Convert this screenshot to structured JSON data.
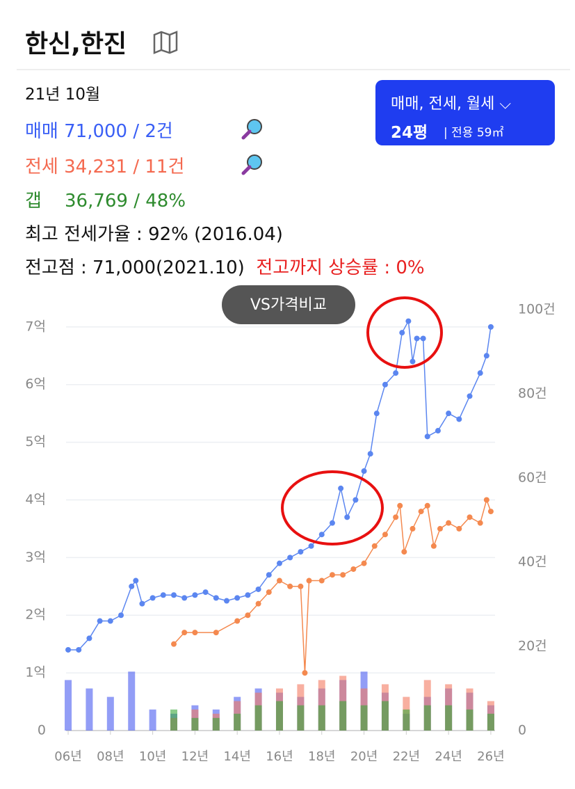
{
  "header": {
    "title": "한신,한진"
  },
  "summary": {
    "period": "21년 10월",
    "sale": {
      "label": "매매",
      "value": "71,000 / 2건"
    },
    "lease": {
      "label": "전세",
      "value": "34,231 / 11건"
    },
    "gap": {
      "label": "갭",
      "value": "36,769 / 48%"
    },
    "max_lease_ratio": "최고 전세가율 : 92% (2016.04)",
    "prev_high": "전고점 : 71,000(2021.10)",
    "rise_to_high": "전고까지 상승률 : 0%"
  },
  "filter": {
    "deal_types": "매매, 전세, 월세",
    "size": "24평",
    "area": "전용 59㎡"
  },
  "compare_button": "VS가격비교",
  "chart_data": {
    "type": "line",
    "xlim": [
      2005.9,
      2026.2
    ],
    "xticks": [
      {
        "value": 2006,
        "label": "06년"
      },
      {
        "value": 2008,
        "label": "08년"
      },
      {
        "value": 2010,
        "label": "10년"
      },
      {
        "value": 2012,
        "label": "12년"
      },
      {
        "value": 2014,
        "label": "14년"
      },
      {
        "value": 2016,
        "label": "16년"
      },
      {
        "value": 2018,
        "label": "18년"
      },
      {
        "value": 2020,
        "label": "20년"
      },
      {
        "value": 2022,
        "label": "22년"
      },
      {
        "value": 2024,
        "label": "24년"
      },
      {
        "value": 2026,
        "label": "26년"
      }
    ],
    "ylim": [
      0,
      7.3
    ],
    "yticks": [
      0,
      {
        "value": 1,
        "label": "1억"
      },
      {
        "value": 2,
        "label": "2억"
      },
      {
        "value": 3,
        "label": "3억"
      },
      {
        "value": 4,
        "label": "4억"
      },
      {
        "value": 5,
        "label": "5억"
      },
      {
        "value": 6,
        "label": "6억"
      },
      {
        "value": 7,
        "label": "7억"
      }
    ],
    "y2lim": [
      0,
      100
    ],
    "y2ticks": [
      0,
      {
        "value": 20,
        "label": "20건"
      },
      {
        "value": 40,
        "label": "40건"
      },
      {
        "value": 60,
        "label": "60건"
      },
      {
        "value": 80,
        "label": "80건"
      },
      {
        "value": 100,
        "label": "100건"
      }
    ],
    "grid": true,
    "series": [
      {
        "type": "bar",
        "axis": "y2",
        "color": "#4a5cf0",
        "x": [
          2006,
          2007,
          2008,
          2009,
          2010,
          2011,
          2012,
          2013,
          2014,
          2015,
          2016,
          2017,
          2018,
          2019,
          2020,
          2021,
          2022,
          2023,
          2024,
          2025,
          2026
        ],
        "values": [
          12,
          10,
          8,
          14,
          5,
          4,
          6,
          5,
          8,
          10,
          9,
          8,
          10,
          12,
          14,
          9,
          4,
          8,
          10,
          9,
          6
        ]
      },
      {
        "type": "bar",
        "axis": "y2",
        "color": "#f47a60",
        "x": [
          2006,
          2007,
          2008,
          2009,
          2010,
          2011,
          2012,
          2013,
          2014,
          2015,
          2016,
          2017,
          2018,
          2019,
          2020,
          2021,
          2022,
          2023,
          2024,
          2025,
          2026
        ],
        "values": [
          null,
          null,
          null,
          null,
          null,
          3,
          5,
          4,
          7,
          9,
          10,
          11,
          12,
          13,
          10,
          11,
          8,
          12,
          11,
          10,
          7
        ]
      },
      {
        "type": "bar",
        "axis": "y2",
        "color": "#3aa83a",
        "x": [
          2006,
          2007,
          2008,
          2009,
          2010,
          2011,
          2012,
          2013,
          2014,
          2015,
          2016,
          2017,
          2018,
          2019,
          2020,
          2021,
          2022,
          2023,
          2024,
          2025,
          2026
        ],
        "values": [
          null,
          null,
          null,
          null,
          null,
          5,
          3,
          3,
          4,
          6,
          7,
          6,
          6,
          7,
          6,
          7,
          5,
          6,
          6,
          5,
          4
        ]
      },
      {
        "type": "line",
        "color": "#f4894f",
        "x": [
          2011.0,
          2011.5,
          2012.0,
          2013.0,
          2014.0,
          2014.5,
          2015.0,
          2015.5,
          2016.0,
          2016.5,
          2017.0,
          2017.2,
          2017.4,
          2018.0,
          2018.5,
          2019.0,
          2019.5,
          2020.0,
          2020.5,
          2021.0,
          2021.5,
          2021.7,
          2021.9,
          2022.3,
          2022.7,
          2023.0,
          2023.3,
          2023.6,
          2024.0,
          2024.5,
          2025.0,
          2025.5,
          2025.8,
          2026.0
        ],
        "values": [
          1.5,
          1.7,
          1.7,
          1.7,
          1.9,
          2.0,
          2.2,
          2.4,
          2.6,
          2.5,
          2.5,
          1.0,
          2.6,
          2.6,
          2.7,
          2.7,
          2.8,
          2.9,
          3.2,
          3.4,
          3.7,
          3.9,
          3.1,
          3.5,
          3.8,
          3.9,
          3.2,
          3.5,
          3.6,
          3.5,
          3.7,
          3.6,
          4.0,
          3.8
        ]
      },
      {
        "type": "line",
        "color": "#5b86f0",
        "x": [
          2006.0,
          2006.5,
          2007.0,
          2007.5,
          2008.0,
          2008.5,
          2009.0,
          2009.2,
          2009.5,
          2010.0,
          2010.5,
          2011.0,
          2011.5,
          2012.0,
          2012.5,
          2013.0,
          2013.5,
          2014.0,
          2014.5,
          2015.0,
          2015.5,
          2016.0,
          2016.5,
          2017.0,
          2017.5,
          2018.0,
          2018.5,
          2018.9,
          2019.2,
          2019.6,
          2020.0,
          2020.3,
          2020.6,
          2021.0,
          2021.5,
          2021.8,
          2022.1,
          2022.3,
          2022.5,
          2022.8,
          2023.0,
          2023.5,
          2024.0,
          2024.5,
          2025.0,
          2025.5,
          2025.8,
          2026.0
        ],
        "values": [
          1.4,
          1.4,
          1.6,
          1.9,
          1.9,
          2.0,
          2.5,
          2.6,
          2.2,
          2.3,
          2.35,
          2.35,
          2.3,
          2.35,
          2.4,
          2.3,
          2.25,
          2.3,
          2.35,
          2.45,
          2.7,
          2.9,
          3.0,
          3.1,
          3.2,
          3.4,
          3.6,
          4.2,
          3.7,
          4.0,
          4.5,
          4.8,
          5.5,
          6.0,
          6.2,
          6.9,
          7.1,
          6.4,
          6.8,
          6.8,
          5.1,
          5.2,
          5.5,
          5.4,
          5.8,
          6.2,
          6.5,
          7.0
        ]
      }
    ]
  }
}
